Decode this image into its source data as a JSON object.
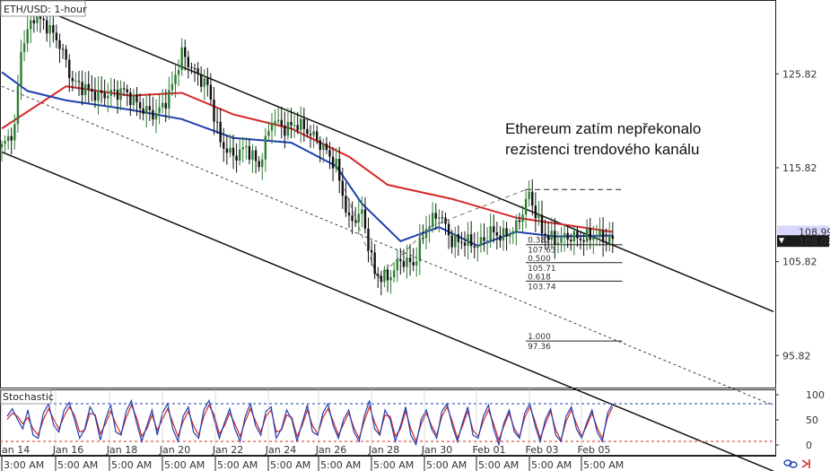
{
  "chart_title": "ETH/USD: 1-hour",
  "indicator_title": "Stochastic",
  "annotation": [
    "Ethereum zatím nepřekonalo",
    "rezistenci trendového kanálu"
  ],
  "price_badges": {
    "upper": "108.99",
    "lower": "108.06"
  },
  "colors": {
    "candle_up": "#2e7d32",
    "candle_down": "#111111",
    "ma_red": "#d62728",
    "ma_blue": "#1f3fb0",
    "stoch_k": "#1f3fb0",
    "stoch_d": "#d62728",
    "badge_upper": "#d8d8ff",
    "badge_lower": "#1a1a1a"
  },
  "chart_data": {
    "type": "candlestick",
    "title": "ETH/USD: 1-hour",
    "ylim": [
      92.5,
      133.5
    ],
    "y_ticks": [
      {
        "value": 125.82,
        "label": "125.82"
      },
      {
        "value": 115.82,
        "label": "115.82"
      },
      {
        "value": 105.82,
        "label": "105.82"
      },
      {
        "value": 95.82,
        "label": "95.82"
      }
    ],
    "x_labels_top": [
      "Jan 14",
      "Jan 16",
      "Jan 18",
      "Jan 20",
      "Jan 22",
      "Jan 24",
      "Jan 26",
      "Jan 28",
      "Jan 30",
      "Feb 01",
      "Feb 03",
      "Feb 05"
    ],
    "x_labels_bottom": [
      "3:00 AM",
      "5:00 AM",
      "5:00 AM",
      "5:00 AM",
      "5:00 AM",
      "5:00 AM",
      "5:00 AM",
      "5:00 AM",
      "5:00 AM",
      "5:00 AM",
      "5:00 AM",
      "5:00 AM"
    ],
    "price_path": [
      [
        0,
        118.0
      ],
      [
        4,
        120.0
      ],
      [
        6,
        128.5
      ],
      [
        10,
        132.0
      ],
      [
        14,
        131.0
      ],
      [
        18,
        129.0
      ],
      [
        22,
        125.0
      ],
      [
        30,
        123.5
      ],
      [
        38,
        124.0
      ],
      [
        44,
        122.0
      ],
      [
        48,
        121.5
      ],
      [
        52,
        123.5
      ],
      [
        56,
        128.0
      ],
      [
        60,
        126.0
      ],
      [
        64,
        124.5
      ],
      [
        68,
        118.5
      ],
      [
        72,
        117.0
      ],
      [
        76,
        118.0
      ],
      [
        80,
        116.0
      ],
      [
        84,
        121.0
      ],
      [
        88,
        120.0
      ],
      [
        92,
        120.5
      ],
      [
        96,
        119.5
      ],
      [
        100,
        118.0
      ],
      [
        104,
        116.0
      ],
      [
        108,
        110.0
      ],
      [
        112,
        111.0
      ],
      [
        116,
        104.5
      ],
      [
        120,
        104.0
      ],
      [
        124,
        106.0
      ],
      [
        128,
        105.5
      ],
      [
        132,
        109.5
      ],
      [
        136,
        111.0
      ],
      [
        140,
        108.0
      ],
      [
        144,
        108.0
      ],
      [
        148,
        107.5
      ],
      [
        152,
        109.0
      ],
      [
        156,
        108.5
      ],
      [
        160,
        109.5
      ],
      [
        164,
        113.0
      ],
      [
        168,
        109.0
      ],
      [
        172,
        108.0
      ],
      [
        176,
        108.5
      ],
      [
        180,
        108.3
      ],
      [
        184,
        108.6
      ],
      [
        188,
        108.2
      ],
      [
        190,
        108.06
      ]
    ],
    "moving_averages": [
      {
        "name": "",
        "color": "#d62728",
        "points": [
          [
            0,
            120.0
          ],
          [
            20,
            124.5
          ],
          [
            40,
            123.5
          ],
          [
            56,
            123.8
          ],
          [
            72,
            121.5
          ],
          [
            90,
            120.0
          ],
          [
            108,
            117.0
          ],
          [
            120,
            114.0
          ],
          [
            140,
            112.5
          ],
          [
            160,
            110.5
          ],
          [
            180,
            109.5
          ],
          [
            190,
            108.99
          ]
        ]
      },
      {
        "name": "",
        "color": "#1f3fb0",
        "points": [
          [
            0,
            126.0
          ],
          [
            8,
            124.0
          ],
          [
            20,
            123.0
          ],
          [
            40,
            122.0
          ],
          [
            56,
            121.0
          ],
          [
            72,
            119.0
          ],
          [
            90,
            118.5
          ],
          [
            104,
            116.0
          ],
          [
            112,
            112.0
          ],
          [
            124,
            108.0
          ],
          [
            136,
            109.5
          ],
          [
            148,
            107.5
          ],
          [
            160,
            109.0
          ],
          [
            172,
            108.5
          ],
          [
            190,
            108.6
          ]
        ]
      }
    ],
    "channel": {
      "upper": [
        [
          0,
          134.5
        ],
        [
          240,
          100.5
        ]
      ],
      "middle": [
        [
          0,
          124.5
        ],
        [
          240,
          90.5
        ]
      ],
      "lower": [
        [
          0,
          117.5
        ],
        [
          240,
          83.5
        ]
      ]
    },
    "fibonacci": [
      {
        "ratio": "",
        "price": 113.5,
        "dashed": true
      },
      {
        "ratio": "0.382",
        "price": "107.63"
      },
      {
        "ratio": "0.500",
        "price": "105.71"
      },
      {
        "ratio": "0.618",
        "price": "103.74"
      },
      {
        "ratio": "1.000",
        "price": "97.36"
      }
    ],
    "fib_x": [
      163,
      193
    ],
    "stochastic": {
      "ylim": [
        0,
        100
      ],
      "ticks": [
        100,
        50,
        0
      ],
      "levels": [
        80,
        20
      ],
      "k": [
        60,
        72,
        55,
        40,
        70,
        30,
        25,
        65,
        80,
        45,
        35,
        70,
        82,
        55,
        25,
        40,
        75,
        60,
        22,
        55,
        78,
        35,
        30,
        68,
        85,
        50,
        20,
        45,
        70,
        30,
        65,
        80,
        40,
        20,
        60,
        75,
        35,
        25,
        70,
        85,
        55,
        25,
        50,
        72,
        40,
        20,
        60,
        80,
        45,
        30,
        68,
        75,
        25,
        40,
        70,
        55,
        20,
        50,
        78,
        35,
        30,
        65,
        80,
        45,
        25,
        55,
        70,
        35,
        20,
        60,
        85,
        40,
        30,
        70,
        55,
        20,
        45,
        75,
        30,
        15,
        55,
        70,
        40,
        25,
        68,
        80,
        45,
        20,
        50,
        75,
        30,
        25,
        60,
        78,
        40,
        15,
        50,
        70,
        35,
        25,
        65,
        80,
        45,
        20,
        55,
        72,
        30,
        20,
        60,
        75,
        40,
        25,
        50,
        70,
        35,
        20,
        65,
        80
      ],
      "d": [
        55,
        65,
        60,
        48,
        58,
        40,
        30,
        55,
        72,
        55,
        40,
        60,
        75,
        62,
        35,
        38,
        65,
        62,
        32,
        48,
        68,
        48,
        32,
        58,
        78,
        58,
        28,
        40,
        62,
        38,
        55,
        72,
        50,
        28,
        52,
        68,
        45,
        30,
        60,
        78,
        62,
        32,
        45,
        65,
        48,
        28,
        52,
        72,
        52,
        35,
        60,
        70,
        35,
        38,
        62,
        58,
        28,
        45,
        70,
        45,
        32,
        58,
        72,
        52,
        30,
        48,
        65,
        42,
        25,
        52,
        75,
        50,
        32,
        62,
        60,
        28,
        40,
        68,
        40,
        20,
        48,
        65,
        45,
        30,
        60,
        75,
        52,
        25,
        45,
        68,
        38,
        28,
        52,
        70,
        48,
        22,
        45,
        65,
        40,
        28,
        58,
        75,
        52,
        25,
        48,
        68,
        38,
        22,
        52,
        70,
        48,
        28,
        45,
        65,
        42,
        25,
        58,
        75
      ]
    }
  }
}
